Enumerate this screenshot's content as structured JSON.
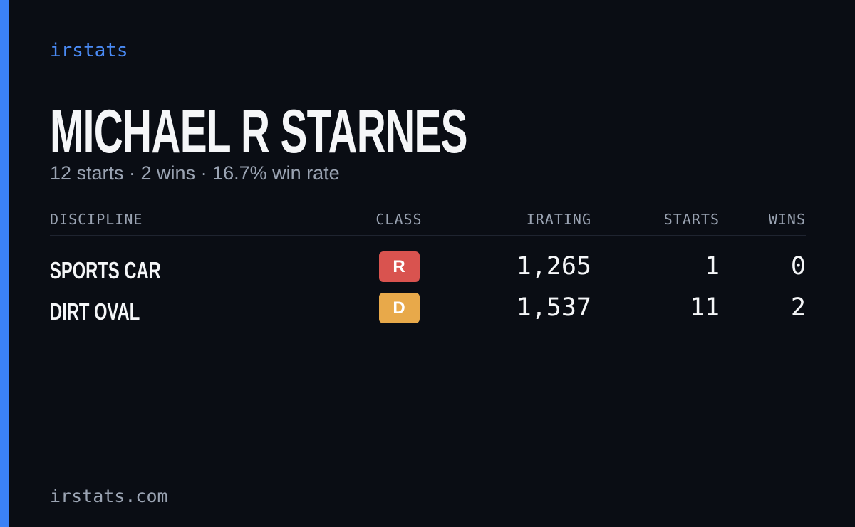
{
  "brand": "irstats",
  "name": "MICHAEL R STARNES",
  "summary": "12 starts · 2 wins · 16.7% win rate",
  "table": {
    "columns": [
      "DISCIPLINE",
      "CLASS",
      "IRATING",
      "STARTS",
      "WINS"
    ],
    "rows": [
      {
        "discipline": "SPORTS CAR",
        "class": "R",
        "class_color": "#d9534f",
        "irating": "1,265",
        "starts": "1",
        "wins": "0"
      },
      {
        "discipline": "DIRT OVAL",
        "class": "D",
        "class_color": "#e8a94a",
        "irating": "1,537",
        "starts": "11",
        "wins": "2"
      }
    ]
  },
  "footer": "irstats.com"
}
